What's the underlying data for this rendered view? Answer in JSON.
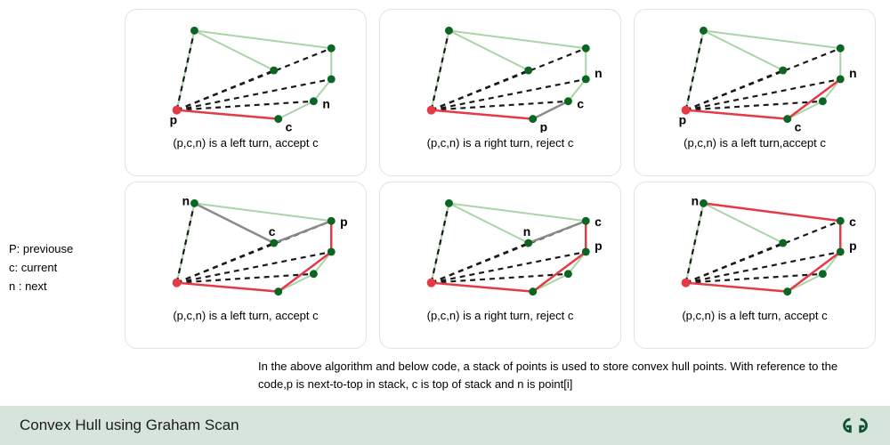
{
  "legend": {
    "p": "P: previouse",
    "c": "c: current",
    "n": "n : next"
  },
  "colors": {
    "point": "#0b6623",
    "pivot": "#e63946",
    "dashed": "#1a1a1a",
    "light_edge": "#a8d5a8",
    "red_edge": "#e63946",
    "gray_edge": "#8a8a8a",
    "panel_border": "#e2e2e2",
    "footer_bg": "#d6e4dc"
  },
  "panels": {
    "p1": {
      "caption": "(p,c,n) is a left turn, accept c"
    },
    "p2": {
      "caption": "(p,c,n) is a right turn, reject c"
    },
    "p3": {
      "caption": "(p,c,n) is a left turn,accept c"
    },
    "p4": {
      "caption": "(p,c,n) is a left turn, accept c"
    },
    "p5": {
      "caption": "(p,c,n) is a right turn, reject c"
    },
    "p6": {
      "caption": "(p,c,n) is a left turn, accept c"
    }
  },
  "description": "In the above algorithm and below code, a stack of points is used to store convex hull points. With reference to the code,p is next-to-top in stack, c is top of stack and n is point[i]",
  "footer": {
    "title": "Convex Hull using Graham Scan",
    "logo_color": "#0f5132"
  },
  "geometry": {
    "pts": {
      "A": [
        50,
        105
      ],
      "B": [
        165,
        115
      ],
      "C": [
        205,
        95
      ],
      "D": [
        225,
        70
      ],
      "E": [
        225,
        35
      ],
      "F": [
        160,
        60
      ],
      "G": [
        70,
        15
      ]
    },
    "pivot": "A",
    "dashed_to": [
      "C",
      "D",
      "E",
      "F",
      "G"
    ],
    "light_hull": [
      "A",
      "G",
      "E",
      "D",
      "C",
      "B",
      "A"
    ],
    "light_inner": [
      [
        "G",
        "F"
      ]
    ],
    "labels": {
      "p1": {
        "p": "A",
        "c": "B",
        "n": "C"
      },
      "p2": {
        "p": "B",
        "c": "C",
        "n": "D"
      },
      "p3": {
        "p": "A",
        "c": "B",
        "n": "D"
      },
      "p4": {
        "p": "E",
        "c": "F",
        "n": "G"
      },
      "p5": {
        "p": "D",
        "c": "E",
        "n": "F"
      },
      "p6": {
        "p": "D",
        "c": "E",
        "n": "G"
      }
    },
    "red_edges": {
      "p1": [
        [
          "A",
          "B"
        ]
      ],
      "p2": [
        [
          "A",
          "B"
        ]
      ],
      "p3": [
        [
          "A",
          "B"
        ],
        [
          "B",
          "D"
        ]
      ],
      "p4": [
        [
          "A",
          "B"
        ],
        [
          "B",
          "D"
        ],
        [
          "D",
          "E"
        ]
      ],
      "p5": [
        [
          "A",
          "B"
        ],
        [
          "B",
          "D"
        ],
        [
          "D",
          "E"
        ]
      ],
      "p6": [
        [
          "A",
          "B"
        ],
        [
          "B",
          "D"
        ],
        [
          "D",
          "E"
        ],
        [
          "E",
          "G"
        ]
      ]
    },
    "gray_edges": {
      "p2": [
        [
          "B",
          "C"
        ]
      ],
      "p4": [
        [
          "E",
          "F"
        ],
        [
          "F",
          "G"
        ]
      ],
      "p5": [
        [
          "E",
          "F"
        ]
      ]
    },
    "label_offsets": {
      "A": [
        -8,
        16
      ],
      "B": [
        8,
        14
      ],
      "C": [
        10,
        8
      ],
      "D": [
        10,
        -2
      ],
      "E": [
        10,
        6
      ],
      "F": [
        -6,
        -8
      ],
      "G": [
        -14,
        2
      ]
    }
  }
}
